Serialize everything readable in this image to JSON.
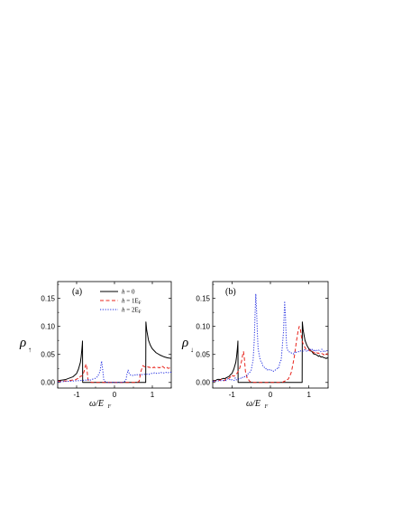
{
  "chart_data": [
    {
      "type": "line",
      "panel_label": "(a)",
      "ylabel_main": "ρ",
      "ylabel_sub": "↑",
      "xlabel_main": "ω/E",
      "xlabel_sub": "F",
      "xlim": [
        -1.5,
        1.5
      ],
      "ylim": [
        -0.01,
        0.18
      ],
      "xticks": [
        -1,
        0,
        1
      ],
      "xtick_labels": [
        "-1",
        "0",
        "1"
      ],
      "yticks": [
        0.0,
        0.05,
        0.1,
        0.15
      ],
      "ytick_labels": [
        "0.00",
        "0.05",
        "0.10",
        "0.15"
      ],
      "legend": {
        "placement": "top-right",
        "entries": [
          {
            "prefix": "h",
            "suffix": " = 0"
          },
          {
            "prefix": "h",
            "suffix": " = 1E",
            "sub": "F"
          },
          {
            "prefix": "h",
            "suffix": " = 2E",
            "sub": "F"
          }
        ]
      },
      "series": [
        {
          "key": "h0",
          "color": "#000000",
          "dash": "",
          "x": [
            -1.5,
            -1.3,
            -1.1,
            -1.0,
            -0.95,
            -0.9,
            -0.88,
            -0.86,
            -0.85,
            -0.845,
            -0.84,
            -0.8,
            0.8,
            0.82,
            0.825,
            0.83,
            0.85,
            0.9,
            0.95,
            1.0,
            1.1,
            1.2,
            1.3,
            1.4,
            1.5
          ],
          "y": [
            0.003,
            0.005,
            0.01,
            0.016,
            0.024,
            0.036,
            0.046,
            0.06,
            0.068,
            0.074,
            0.0,
            0.0,
            0.0,
            0.0,
            0.0,
            0.108,
            0.094,
            0.075,
            0.066,
            0.06,
            0.053,
            0.049,
            0.046,
            0.044,
            0.043
          ]
        },
        {
          "key": "h1",
          "color": "#e8241c",
          "dash": "4,2.5",
          "x": [
            -1.5,
            -1.2,
            -1.0,
            -0.85,
            -0.8,
            -0.77,
            -0.75,
            -0.73,
            -0.7,
            -0.6,
            0.6,
            0.65,
            0.7,
            0.75,
            0.8,
            0.9,
            1.0,
            1.1,
            1.2,
            1.3,
            1.4,
            1.5
          ],
          "y": [
            0.002,
            0.003,
            0.006,
            0.012,
            0.02,
            0.029,
            0.033,
            0.026,
            0.004,
            0.0,
            0.0,
            0.002,
            0.02,
            0.03,
            0.028,
            0.027,
            0.027,
            0.027,
            0.027,
            0.027,
            0.026,
            0.026
          ],
          "noise": 0.0015
        },
        {
          "key": "h2",
          "color": "#1f2be0",
          "dash": "1.2,1.6",
          "x": [
            -1.5,
            -1.0,
            -0.6,
            -0.45,
            -0.38,
            -0.36,
            -0.34,
            -0.32,
            -0.28,
            -0.2,
            0.2,
            0.3,
            0.33,
            0.36,
            0.4,
            0.5,
            0.7,
            1.0,
            1.2,
            1.5
          ],
          "y": [
            0.001,
            0.003,
            0.005,
            0.01,
            0.02,
            0.03,
            0.038,
            0.028,
            0.003,
            0.0,
            0.0,
            0.003,
            0.015,
            0.022,
            0.014,
            0.013,
            0.014,
            0.016,
            0.017,
            0.018
          ],
          "noise": 0.001
        }
      ]
    },
    {
      "type": "line",
      "panel_label": "(b)",
      "ylabel_main": "ρ",
      "ylabel_sub": "↓",
      "xlabel_main": "ω/E",
      "xlabel_sub": "F",
      "xlim": [
        -1.5,
        1.5
      ],
      "ylim": [
        -0.01,
        0.18
      ],
      "xticks": [
        -1,
        0,
        1
      ],
      "xtick_labels": [
        "-1",
        "0",
        "1"
      ],
      "yticks": [
        0.0,
        0.05,
        0.1,
        0.15
      ],
      "ytick_labels": [
        "0.00",
        "0.05",
        "0.10",
        "0.15"
      ],
      "series": [
        {
          "key": "h0",
          "color": "#000000",
          "dash": "",
          "x": [
            -1.5,
            -1.3,
            -1.1,
            -1.0,
            -0.95,
            -0.9,
            -0.88,
            -0.86,
            -0.85,
            -0.845,
            -0.84,
            -0.8,
            0.8,
            0.82,
            0.825,
            0.83,
            0.85,
            0.9,
            0.95,
            1.0,
            1.1,
            1.2,
            1.3,
            1.4,
            1.5
          ],
          "y": [
            0.003,
            0.005,
            0.01,
            0.016,
            0.024,
            0.036,
            0.046,
            0.06,
            0.068,
            0.074,
            0.0,
            0.0,
            0.0,
            0.0,
            0.0,
            0.108,
            0.094,
            0.075,
            0.066,
            0.06,
            0.053,
            0.049,
            0.046,
            0.044,
            0.043
          ],
          "noise": 0.0012
        },
        {
          "key": "h1",
          "color": "#e8241c",
          "dash": "4,2.5",
          "x": [
            -1.5,
            -1.1,
            -0.9,
            -0.8,
            -0.75,
            -0.72,
            -0.7,
            -0.68,
            -0.65,
            -0.6,
            -0.5,
            0.3,
            0.45,
            0.55,
            0.62,
            0.68,
            0.72,
            0.75,
            0.78,
            0.82,
            0.9,
            1.0,
            1.1,
            1.2,
            1.3,
            1.5
          ],
          "y": [
            0.002,
            0.006,
            0.015,
            0.025,
            0.038,
            0.05,
            0.055,
            0.045,
            0.02,
            0.006,
            0.0,
            0.0,
            0.005,
            0.02,
            0.045,
            0.075,
            0.092,
            0.1,
            0.095,
            0.075,
            0.062,
            0.058,
            0.055,
            0.054,
            0.052,
            0.05
          ],
          "noise": 0.002
        },
        {
          "key": "h2",
          "color": "#1f2be0",
          "dash": "1.2,1.6",
          "x": [
            -1.5,
            -1.0,
            -0.8,
            -0.6,
            -0.5,
            -0.45,
            -0.42,
            -0.4,
            -0.38,
            -0.36,
            -0.34,
            -0.32,
            -0.28,
            -0.2,
            -0.1,
            0.1,
            0.2,
            0.28,
            0.34,
            0.37,
            0.39,
            0.41,
            0.43,
            0.47,
            0.55,
            0.7,
            1.0,
            1.2,
            1.5
          ],
          "y": [
            0.002,
            0.005,
            0.008,
            0.012,
            0.022,
            0.04,
            0.075,
            0.12,
            0.158,
            0.13,
            0.09,
            0.06,
            0.045,
            0.03,
            0.022,
            0.02,
            0.024,
            0.04,
            0.09,
            0.145,
            0.12,
            0.08,
            0.06,
            0.055,
            0.052,
            0.054,
            0.058,
            0.058,
            0.056
          ],
          "noise": 0.0025
        }
      ]
    }
  ]
}
